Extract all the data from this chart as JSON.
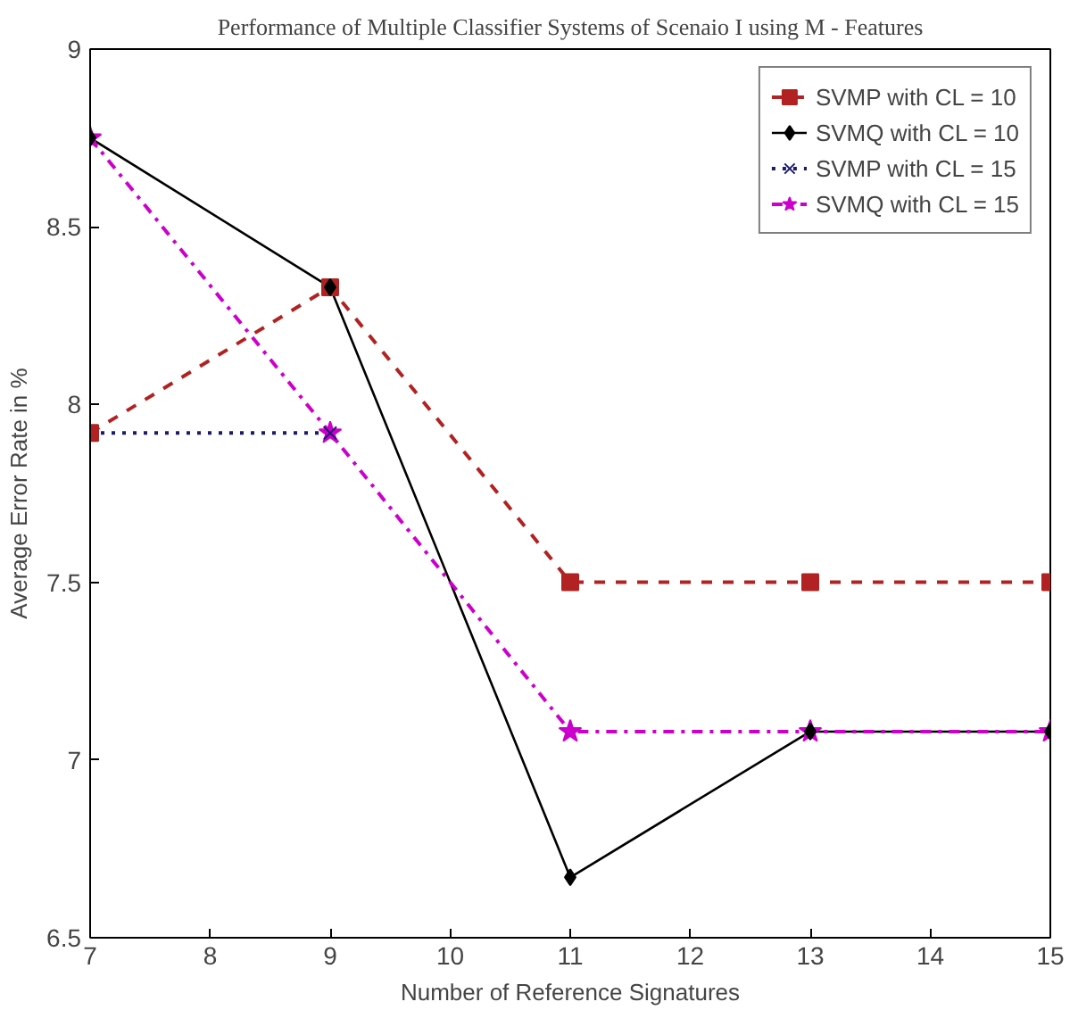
{
  "chart_data": {
    "type": "line",
    "title": "Performance of Multiple Classifier Systems of Scenaio I using M - Features",
    "xlabel": "Number of Reference Signatures",
    "ylabel": "Average Error Rate in %",
    "x": [
      7,
      9,
      11,
      13,
      15
    ],
    "series": [
      {
        "name": "SVMP with CL = 10",
        "color": "#b22222",
        "values": [
          7.92,
          8.33,
          7.5,
          7.5,
          7.5
        ],
        "line_style": "dashed",
        "marker": "square"
      },
      {
        "name": "SVMQ with CL = 10",
        "color": "#000000",
        "values": [
          8.75,
          8.33,
          6.67,
          7.08,
          7.08
        ],
        "line_style": "solid",
        "marker": "diamond"
      },
      {
        "name": "SVMP with CL = 15",
        "color": "#1a1a6e",
        "values": [
          7.92,
          7.92,
          null,
          null,
          null
        ],
        "line_style": "dotted",
        "marker": "cross"
      },
      {
        "name": "SVMQ with CL = 15",
        "color": "#cc00cc",
        "values": [
          8.75,
          7.92,
          7.08,
          7.08,
          7.08
        ],
        "line_style": "dashdot",
        "marker": "star"
      }
    ],
    "xlim": [
      7,
      15
    ],
    "ylim": [
      6.5,
      9
    ],
    "xticks": [
      7,
      8,
      9,
      10,
      11,
      12,
      13,
      14,
      15
    ],
    "yticks": [
      6.5,
      7,
      7.5,
      8,
      8.5,
      9
    ],
    "grid": false,
    "legend": "top right"
  }
}
